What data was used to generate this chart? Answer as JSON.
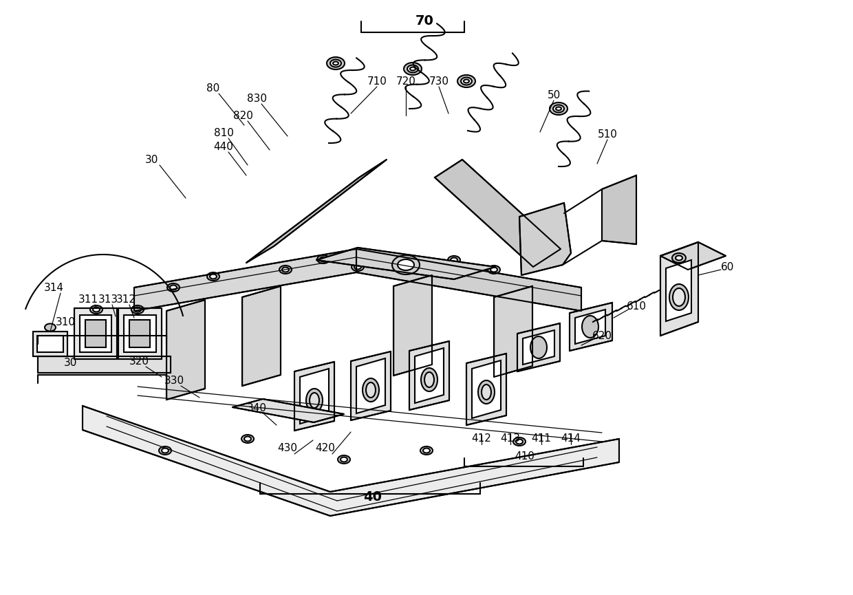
{
  "bg": "#ffffff",
  "lc": "#000000",
  "lw": 1.5,
  "lw_thin": 0.9,
  "fs": 11,
  "fs_large": 14
}
